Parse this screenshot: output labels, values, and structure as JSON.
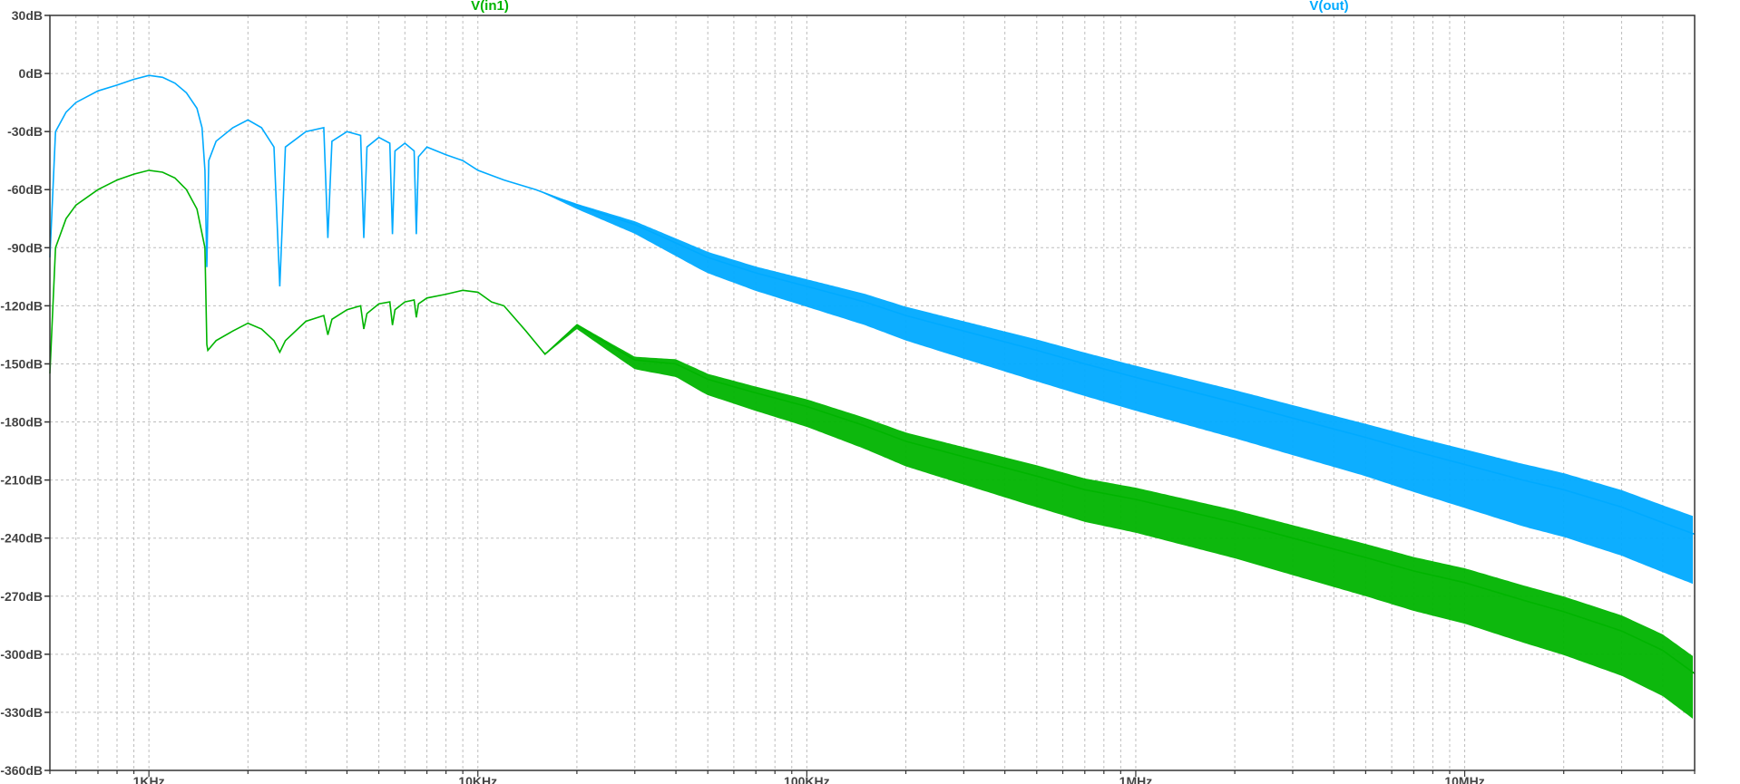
{
  "chart_data": {
    "type": "line",
    "title": "",
    "xlabel": "",
    "ylabel": "",
    "x_scale": "log",
    "x_unit": "Hz",
    "xlim": [
      500,
      50000000
    ],
    "ylim": [
      -360,
      30
    ],
    "grid": true,
    "legend_placement": "top",
    "x_ticks": [
      {
        "value": 1000,
        "label": "1KHz"
      },
      {
        "value": 10000,
        "label": "10KHz"
      },
      {
        "value": 100000,
        "label": "100KHz"
      },
      {
        "value": 1000000,
        "label": "1MHz"
      },
      {
        "value": 10000000,
        "label": "10MHz"
      }
    ],
    "y_ticks": [
      {
        "value": 30,
        "label": "30dB"
      },
      {
        "value": 0,
        "label": "0dB"
      },
      {
        "value": -30,
        "label": "-30dB"
      },
      {
        "value": -60,
        "label": "-60dB"
      },
      {
        "value": -90,
        "label": "-90dB"
      },
      {
        "value": -120,
        "label": "-120dB"
      },
      {
        "value": -150,
        "label": "-150dB"
      },
      {
        "value": -180,
        "label": "-180dB"
      },
      {
        "value": -210,
        "label": "-210dB"
      },
      {
        "value": -240,
        "label": "-240dB"
      },
      {
        "value": -270,
        "label": "-270dB"
      },
      {
        "value": -300,
        "label": "-300dB"
      },
      {
        "value": -330,
        "label": "-330dB"
      },
      {
        "value": -360,
        "label": "-360dB"
      }
    ],
    "series": [
      {
        "name": "V(in1)",
        "color": "#00b400",
        "x": [
          500,
          520,
          560,
          600,
          700,
          800,
          900,
          1000,
          1100,
          1200,
          1300,
          1400,
          1480,
          1500,
          1510,
          1600,
          1800,
          2000,
          2200,
          2400,
          2500,
          2600,
          3000,
          3400,
          3500,
          3600,
          4000,
          4400,
          4500,
          4600,
          5000,
          5400,
          5500,
          5600,
          6000,
          6400,
          6500,
          6600,
          7000,
          8000,
          9000,
          10000,
          11000,
          12000,
          14000,
          16000,
          18000,
          20000,
          25000,
          30000,
          40000,
          50000,
          70000,
          100000,
          150000,
          200000,
          300000,
          500000,
          700000,
          1000000,
          2000000,
          3000000,
          5000000,
          7000000,
          10000000,
          15000000,
          20000000,
          30000000,
          40000000,
          50000000
        ],
        "values": [
          -155,
          -90,
          -75,
          -68,
          -60,
          -55,
          -52,
          -50,
          -51,
          -54,
          -60,
          -70,
          -90,
          -140,
          -143,
          -138,
          -133,
          -129,
          -132,
          -138,
          -144,
          -138,
          -128,
          -125,
          -135,
          -127,
          -122,
          -120,
          -132,
          -124,
          -119,
          -118,
          -130,
          -122,
          -118,
          -117,
          -126,
          -119,
          -116,
          -114,
          -112,
          -113,
          -118,
          -120,
          -133,
          -145,
          -137,
          -130,
          -140,
          -148,
          -150,
          -158,
          -165,
          -172,
          -182,
          -190,
          -198,
          -208,
          -215,
          -220,
          -232,
          -240,
          -250,
          -257,
          -263,
          -272,
          -278,
          -288,
          -298,
          -310
        ],
        "noise_from": 15000,
        "noise_band": [
          0,
          8,
          12,
          16,
          18,
          20,
          22,
          24
        ]
      },
      {
        "name": "V(out)",
        "color": "#00aaff",
        "x": [
          500,
          520,
          560,
          600,
          700,
          800,
          900,
          1000,
          1100,
          1200,
          1300,
          1400,
          1450,
          1480,
          1500,
          1520,
          1600,
          1800,
          2000,
          2200,
          2400,
          2500,
          2600,
          3000,
          3400,
          3500,
          3600,
          4000,
          4400,
          4500,
          4600,
          5000,
          5400,
          5500,
          5600,
          6000,
          6400,
          6500,
          6600,
          7000,
          8000,
          9000,
          10000,
          12000,
          15000,
          20000,
          30000,
          50000,
          70000,
          100000,
          150000,
          200000,
          300000,
          500000,
          700000,
          1000000,
          2000000,
          3000000,
          5000000,
          7000000,
          10000000,
          15000000,
          20000000,
          30000000,
          40000000,
          50000000
        ],
        "values": [
          -95,
          -30,
          -20,
          -15,
          -9,
          -6,
          -3,
          -1,
          -2,
          -5,
          -10,
          -18,
          -28,
          -50,
          -100,
          -45,
          -35,
          -28,
          -24,
          -28,
          -38,
          -110,
          -38,
          -30,
          -28,
          -85,
          -35,
          -30,
          -32,
          -85,
          -38,
          -33,
          -36,
          -83,
          -40,
          -36,
          -40,
          -83,
          -43,
          -38,
          -42,
          -45,
          -50,
          -55,
          -60,
          -68,
          -78,
          -95,
          -103,
          -110,
          -118,
          -125,
          -133,
          -143,
          -150,
          -157,
          -170,
          -178,
          -188,
          -195,
          -202,
          -210,
          -215,
          -224,
          -232,
          -238
        ],
        "noise_from": 15000,
        "noise_band": [
          0,
          8,
          12,
          16,
          18,
          20,
          24,
          26
        ]
      }
    ]
  }
}
